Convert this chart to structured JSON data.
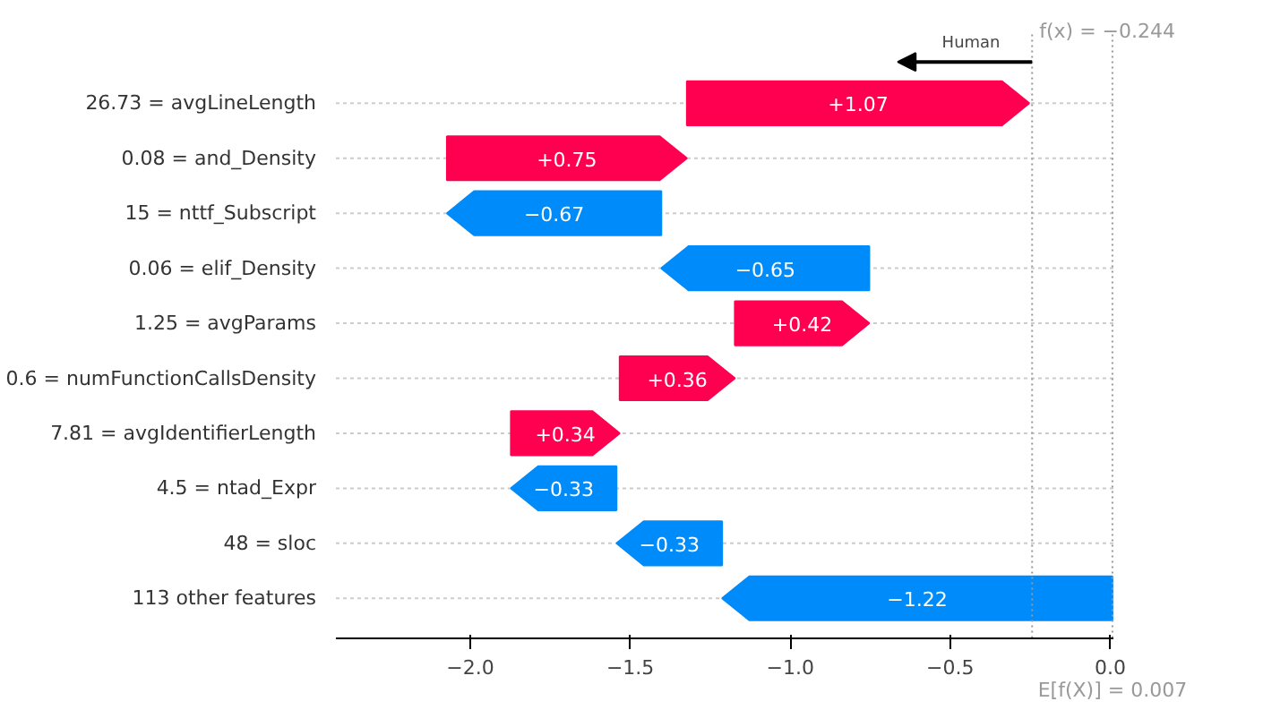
{
  "chart_data": {
    "type": "bar",
    "orientation": "horizontal",
    "categories": [
      "26.73 = avgLineLength",
      "0.08 = and_Density",
      "15 = nttf_Subscript",
      "0.06 = elif_Density",
      "1.25 = avgParams",
      "0.6 = numFunctionCallsDensity",
      "7.81 = avgIdentifierLength",
      "4.5 = ntad_Expr",
      "48 = sloc",
      "113 other features"
    ],
    "values": [
      1.07,
      0.75,
      -0.67,
      -0.65,
      0.42,
      0.36,
      0.34,
      -0.33,
      -0.33,
      -1.22
    ],
    "base": [
      -1.323,
      -2.073,
      -1.403,
      -0.753,
      -1.173,
      -1.533,
      -1.873,
      -1.543,
      -1.213,
      0.007
    ],
    "colors": [
      "#ff0051",
      "#ff0051",
      "#008bfb",
      "#008bfb",
      "#ff0051",
      "#ff0051",
      "#ff0051",
      "#008bfb",
      "#008bfb",
      "#008bfb"
    ],
    "value_labels": [
      "+1.07",
      "+0.75",
      "−0.67",
      "−0.65",
      "+0.42",
      "+0.36",
      "+0.34",
      "−0.33",
      "−0.33",
      "−1.22"
    ],
    "xlim": [
      -2.42,
      0.01
    ],
    "xticks": [
      {
        "value": -2,
        "label": "−2.0"
      },
      {
        "value": -1.5,
        "label": "−1.5"
      },
      {
        "value": -1,
        "label": "−1.0"
      },
      {
        "value": -0.5,
        "label": "−0.5"
      },
      {
        "value": 0,
        "label": "0.0"
      }
    ],
    "ref_lines": [
      {
        "axis": "x",
        "value": -0.244,
        "label": "f(x) = −0.244",
        "color": "#999999",
        "line_style": "dotted"
      },
      {
        "axis": "x",
        "value": 0.007,
        "label": "E[f(X)] = 0.007",
        "color": "#999999",
        "line_style": "dotted"
      }
    ],
    "annotations": [
      "Human"
    ],
    "grid": "y"
  }
}
